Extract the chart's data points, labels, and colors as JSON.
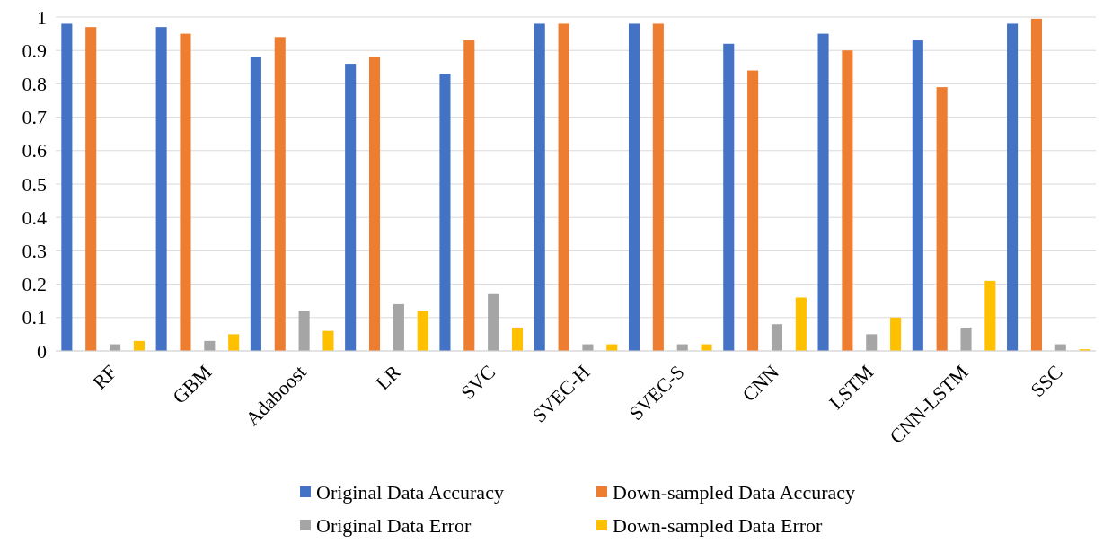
{
  "chart_data": {
    "type": "bar",
    "categories": [
      "RF",
      "GBM",
      "Adaboost",
      "LR",
      "SVC",
      "SVEC-H",
      "SVEC-S",
      "CNN",
      "LSTM",
      "CNN-LSTM",
      "SSC"
    ],
    "series": [
      {
        "name": "Original Data Accuracy",
        "color": "#4472c4",
        "values": [
          0.98,
          0.97,
          0.88,
          0.86,
          0.83,
          0.98,
          0.98,
          0.92,
          0.95,
          0.93,
          0.98
        ]
      },
      {
        "name": "Down-sampled Data Accuracy",
        "color": "#ed7d31",
        "values": [
          0.97,
          0.95,
          0.94,
          0.88,
          0.93,
          0.98,
          0.98,
          0.84,
          0.9,
          0.79,
          0.995
        ]
      },
      {
        "name": "Original Data Error",
        "color": "#a5a5a5",
        "values": [
          0.02,
          0.03,
          0.12,
          0.14,
          0.17,
          0.02,
          0.02,
          0.08,
          0.05,
          0.07,
          0.02
        ]
      },
      {
        "name": "Down-sampled Data Error",
        "color": "#ffc000",
        "values": [
          0.03,
          0.05,
          0.06,
          0.12,
          0.07,
          0.02,
          0.02,
          0.16,
          0.1,
          0.21,
          0.005
        ]
      }
    ],
    "ylim": [
      0,
      1
    ],
    "yticks": [
      0,
      0.1,
      0.2,
      0.3,
      0.4,
      0.5,
      0.6,
      0.7,
      0.8,
      0.9,
      1
    ],
    "grid": "y",
    "legend": "bottom"
  }
}
